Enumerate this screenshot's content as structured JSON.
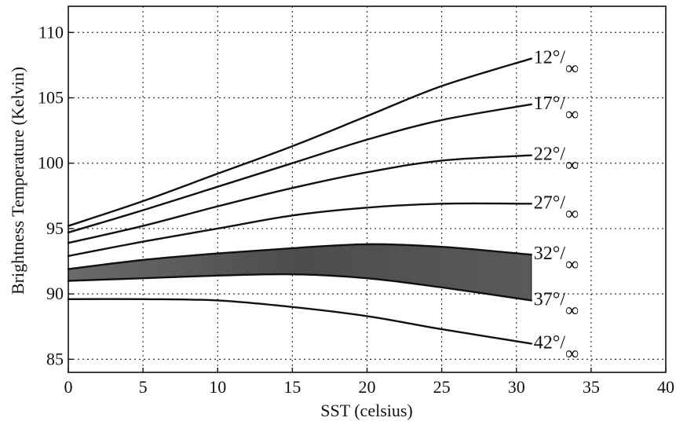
{
  "chart_data": {
    "type": "line",
    "title": "",
    "xlabel": "SST (celsius)",
    "ylabel": "Brightness Temperature (Kelvin)",
    "xlim": [
      0,
      40
    ],
    "ylim": [
      84,
      112
    ],
    "xticks": [
      "0",
      "5",
      "10",
      "15",
      "20",
      "25",
      "30",
      "35",
      "40"
    ],
    "yticks": [
      "85",
      "90",
      "95",
      "100",
      "105",
      "110"
    ],
    "grid": true,
    "x": [
      0,
      5,
      10,
      15,
      20,
      25,
      31
    ],
    "series": [
      {
        "name": "12°/∞",
        "values": [
          95.2,
          97.1,
          99.2,
          101.3,
          103.6,
          105.9,
          108.0
        ]
      },
      {
        "name": "17°/∞",
        "values": [
          94.7,
          96.4,
          98.2,
          100.0,
          101.8,
          103.3,
          104.5
        ]
      },
      {
        "name": "22°/∞",
        "values": [
          93.9,
          95.2,
          96.7,
          98.1,
          99.3,
          100.2,
          100.6
        ]
      },
      {
        "name": "27°/∞",
        "values": [
          92.9,
          94.0,
          95.0,
          96.0,
          96.6,
          96.9,
          96.9
        ]
      },
      {
        "name": "32°/∞",
        "values": [
          91.9,
          92.6,
          93.1,
          93.5,
          93.8,
          93.6,
          93.0
        ]
      },
      {
        "name": "37°/∞",
        "values": [
          91.0,
          91.2,
          91.4,
          91.5,
          91.2,
          90.5,
          89.5
        ]
      },
      {
        "name": "42°/∞",
        "values": [
          89.6,
          89.6,
          89.5,
          89.0,
          88.3,
          87.3,
          86.2
        ]
      }
    ],
    "shaded_band": {
      "upper": "32°/∞",
      "lower": "37°/∞",
      "color": "#4a4a4a"
    },
    "line_color": "#111111",
    "grid_color": "#333333"
  }
}
